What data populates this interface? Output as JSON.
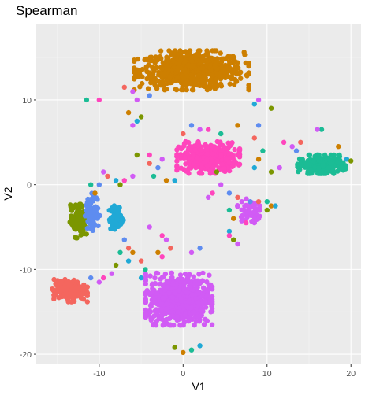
{
  "chart_data": {
    "type": "scatter",
    "title": "Spearman",
    "xlabel": "V1",
    "ylabel": "V2",
    "xlim": [
      -17.5,
      21.2
    ],
    "ylim": [
      -21.2,
      19.0
    ],
    "x_ticks": [
      -10,
      0,
      10,
      20
    ],
    "y_ticks": [
      -20,
      -10,
      0,
      10
    ],
    "grid": true,
    "legend": "none",
    "panel_background": "#EBEBEB",
    "clusters": [
      {
        "color": "#CD7F00",
        "center": [
          1.0,
          13.5
        ],
        "spread": [
          6.2,
          2.1
        ],
        "n": 700
      },
      {
        "color": "#FF45BD",
        "center": [
          3.0,
          3.2
        ],
        "spread": [
          3.4,
          1.7
        ],
        "n": 380
      },
      {
        "color": "#1BBC95",
        "center": [
          16.5,
          2.4
        ],
        "spread": [
          2.6,
          1.0
        ],
        "n": 260
      },
      {
        "color": "#D15BF5",
        "center": [
          -0.5,
          -13.5
        ],
        "spread": [
          3.6,
          2.8
        ],
        "n": 700
      },
      {
        "color": "#F4665E",
        "center": [
          -13.5,
          -12.5
        ],
        "spread": [
          1.9,
          1.2
        ],
        "n": 190
      },
      {
        "color": "#7B9600",
        "center": [
          -12.5,
          -4.3
        ],
        "spread": [
          0.9,
          1.8
        ],
        "n": 130
      },
      {
        "color": "#5E8CF0",
        "center": [
          -10.8,
          -3.2
        ],
        "spread": [
          0.8,
          2.0
        ],
        "n": 95
      },
      {
        "color": "#20A9D6",
        "center": [
          -8.0,
          -4.0
        ],
        "spread": [
          0.8,
          1.4
        ],
        "n": 80
      },
      {
        "color": "#D15BF5",
        "center": [
          7.8,
          -3.0
        ],
        "spread": [
          1.2,
          1.2
        ],
        "n": 55
      }
    ],
    "scattered_points": [
      [
        -6,
        11
      ],
      [
        -10,
        10
      ],
      [
        -5.5,
        10
      ],
      [
        -4,
        10.5
      ],
      [
        -7,
        11.5
      ],
      [
        -11.5,
        10
      ],
      [
        -6.5,
        8.5
      ],
      [
        -5.5,
        7.5
      ],
      [
        -5,
        8
      ],
      [
        -6,
        7
      ],
      [
        -4,
        3.5
      ],
      [
        -2.5,
        3
      ],
      [
        -3,
        2
      ],
      [
        -4,
        2.5
      ],
      [
        -3.5,
        1
      ],
      [
        -2,
        0.5
      ],
      [
        -1,
        0.5
      ],
      [
        -5.5,
        3.5
      ],
      [
        -6,
        1
      ],
      [
        -7,
        0.5
      ],
      [
        -9.5,
        1.5
      ],
      [
        -10,
        0
      ],
      [
        -9,
        1
      ],
      [
        -11,
        0
      ],
      [
        -10.5,
        -1
      ],
      [
        -8,
        0.5
      ],
      [
        -7.5,
        0
      ],
      [
        -4,
        -5
      ],
      [
        -2.5,
        -6
      ],
      [
        -2,
        -6.5
      ],
      [
        -7,
        -6.5
      ],
      [
        -6.5,
        -7.5
      ],
      [
        -7.5,
        -8
      ],
      [
        -6,
        -8
      ],
      [
        -6.5,
        -9
      ],
      [
        -8,
        -9.5
      ],
      [
        -8.5,
        -10.5
      ],
      [
        -9.5,
        -11
      ],
      [
        -10,
        -11.5
      ],
      [
        -11,
        -11
      ],
      [
        -5,
        -9
      ],
      [
        -4.5,
        -10
      ],
      [
        -3,
        -8
      ],
      [
        -5,
        -11
      ],
      [
        4,
        1.5
      ],
      [
        4.5,
        0
      ],
      [
        3.5,
        -1
      ],
      [
        3,
        -1.5
      ],
      [
        5.5,
        -1
      ],
      [
        6.5,
        -1.5
      ],
      [
        5.5,
        -3
      ],
      [
        6,
        -4
      ],
      [
        5.5,
        -5.5
      ],
      [
        6,
        -6.5
      ],
      [
        6.5,
        -7
      ],
      [
        5.5,
        -6
      ],
      [
        7,
        -2
      ],
      [
        8,
        -2
      ],
      [
        9,
        -2
      ],
      [
        10,
        -2
      ],
      [
        10.5,
        -2.5
      ],
      [
        11,
        -2.5
      ],
      [
        10,
        -3
      ],
      [
        9,
        -4
      ],
      [
        7.5,
        -4.5
      ],
      [
        8.5,
        -4.5
      ],
      [
        9,
        7
      ],
      [
        8.5,
        5.5
      ],
      [
        9.5,
        4
      ],
      [
        9,
        3
      ],
      [
        8.5,
        2
      ],
      [
        10.5,
        1.5
      ],
      [
        11.5,
        2
      ],
      [
        12,
        5
      ],
      [
        13,
        4.5
      ],
      [
        13.5,
        4
      ],
      [
        14,
        5
      ],
      [
        16.5,
        6.5
      ],
      [
        18.5,
        4.5
      ],
      [
        19.5,
        3
      ],
      [
        20,
        2.8
      ],
      [
        16,
        6.5
      ],
      [
        3,
        6.5
      ],
      [
        2,
        6.5
      ],
      [
        1,
        7
      ],
      [
        0,
        6
      ],
      [
        4.5,
        6
      ],
      [
        6.5,
        7
      ],
      [
        8.5,
        9.5
      ],
      [
        10.5,
        9
      ],
      [
        9,
        10
      ],
      [
        -2.5,
        -8.5
      ],
      [
        1,
        -8
      ],
      [
        2,
        -7.5
      ],
      [
        -1.5,
        -7.5
      ],
      [
        1,
        -19.5
      ],
      [
        0,
        -19.8
      ],
      [
        2,
        -19
      ],
      [
        -1,
        -19.2
      ]
    ]
  }
}
